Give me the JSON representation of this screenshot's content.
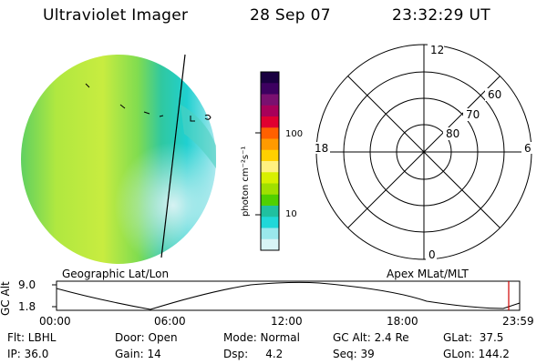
{
  "header": {
    "title": "Ultraviolet Imager",
    "date": "28 Sep 07",
    "time": "23:32:29 UT"
  },
  "colorbar": {
    "unit_label": "photon cm⁻²s⁻¹",
    "tick_100": "100",
    "tick_10": "10",
    "colors": [
      "#1a0040",
      "#3d0060",
      "#7a1070",
      "#a8005a",
      "#e00030",
      "#ff6000",
      "#ff9a00",
      "#ffd000",
      "#fff080",
      "#d8f000",
      "#a0e000",
      "#50d000",
      "#20c0a0",
      "#20d8d8",
      "#9ae8ec",
      "#d8f4f6"
    ]
  },
  "left_panel": {
    "caption": "Geographic Lat/Lon"
  },
  "polar_plot": {
    "caption": "Apex MLat/MLT",
    "mlt_labels": {
      "top": "12",
      "left": "18",
      "right": "6",
      "bottom": "0"
    },
    "lat_labels": [
      "60",
      "70",
      "80"
    ]
  },
  "altitude_plot": {
    "ylabel": "GC Alt",
    "y_ticks": [
      "9.0",
      "1.8"
    ],
    "x_ticks": [
      "00:00",
      "06:00",
      "12:00",
      "18:00",
      "23:59"
    ]
  },
  "status": {
    "row1": {
      "flt": "Flt: LBHL",
      "door": "Door: Open",
      "mode": "Mode: Normal",
      "gcalt": "GC Alt: 2.4 Re",
      "glat": "GLat:  37.5"
    },
    "row2": {
      "ip": "IP: 36.0",
      "gain": "Gain: 14",
      "dsp": "Dsp:     4.2",
      "seq": "Seq: 39",
      "glon": "GLon: 144.2"
    }
  }
}
